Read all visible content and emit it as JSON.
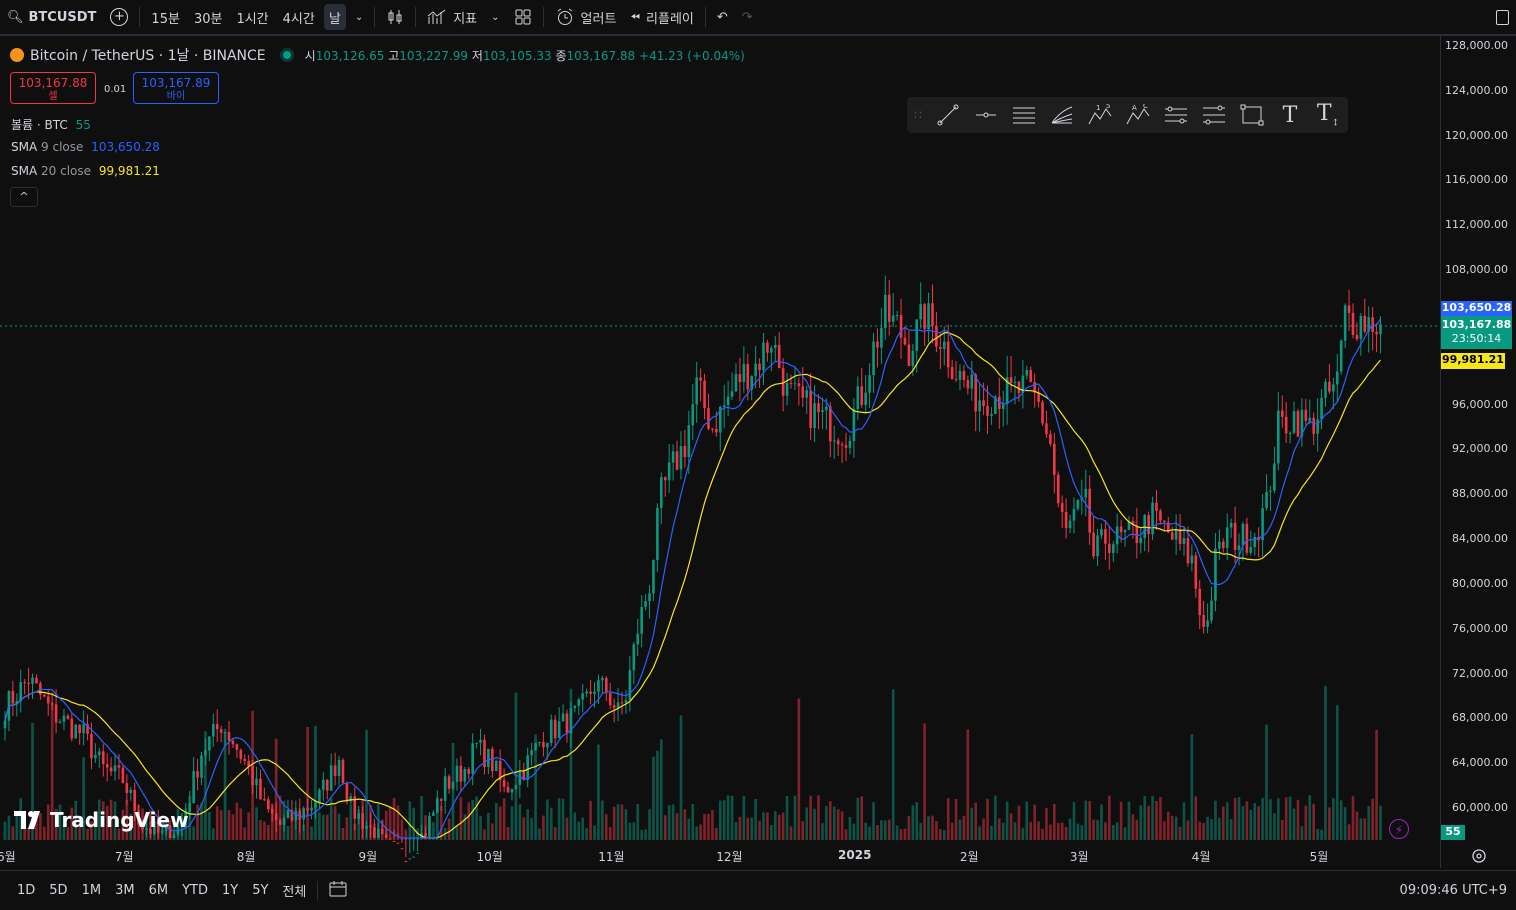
{
  "toolbar": {
    "symbol": "BTCUSDT",
    "intervals": [
      "15분",
      "30분",
      "1시간",
      "4시간",
      "날"
    ],
    "indicators_label": "지표",
    "alert_label": "얼러트",
    "replay_label": "리플레이"
  },
  "legend": {
    "title": "Bitcoin / TetherUS · 1날 · BINANCE",
    "open_label": "시",
    "open": "103,126.65",
    "high_label": "고",
    "high": "103,227.99",
    "low_label": "저",
    "low": "103,105.33",
    "close_label": "종",
    "close": "103,167.88",
    "change": "+41.23 (+0.04%)",
    "sell_price": "103,167.88",
    "sell_label": "셀",
    "spread": "0.01",
    "buy_price": "103,167.89",
    "buy_label": "바이",
    "volume_label": "볼륨 · BTC",
    "volume_value": "55",
    "sma9_name": "SMA",
    "sma9_params": "9 close",
    "sma9_value": "103,650.28",
    "sma20_name": "SMA",
    "sma20_params": "20 close",
    "sma20_value": "99,981.21",
    "collapse": "^"
  },
  "price_tags": {
    "sma9": "103,650.28",
    "last": "103,167.88",
    "countdown": "23:50:14",
    "sma20": "99,981.21",
    "volume": "55"
  },
  "bottom": {
    "ranges": [
      "1D",
      "5D",
      "1M",
      "3M",
      "6M",
      "YTD",
      "1Y",
      "5Y",
      "전체"
    ],
    "clock": "09:09:46 UTC+9"
  },
  "watermark": "TradingView",
  "colors": {
    "up": "#089981",
    "down": "#f23645",
    "sma9": "#2962ff",
    "sma20": "#f7e51e",
    "background": "#0f0f0f"
  },
  "chart_data": {
    "type": "candlestick",
    "title": "Bitcoin / TetherUS · 1날 · BINANCE",
    "y_ticks": [
      128000,
      124000,
      120000,
      116000,
      112000,
      108000,
      96000,
      92000,
      88000,
      84000,
      80000,
      76000,
      72000,
      68000,
      64000,
      60000
    ],
    "y_tick_labels": [
      "128,000.00",
      "124,000.00",
      "120,000.00",
      "116,000.00",
      "112,000.00",
      "108,000.00",
      "96,000.00",
      "92,000.00",
      "88,000.00",
      "84,000.00",
      "80,000.00",
      "76,000.00",
      "72,000.00",
      "68,000.00",
      "64,000.00",
      "60,000.00"
    ],
    "ylim": [
      56500,
      131000
    ],
    "x_tick_labels": [
      "6월",
      "7월",
      "8월",
      "9월",
      "10월",
      "11월",
      "12월",
      "2025",
      "2월",
      "3월",
      "4월",
      "5월"
    ],
    "x_tick_day_index": [
      0,
      30,
      61,
      92,
      122,
      153,
      183,
      214,
      245,
      273,
      304,
      334
    ],
    "close_path": [
      [
        0,
        69000
      ],
      [
        6,
        71500
      ],
      [
        12,
        68500
      ],
      [
        20,
        66500
      ],
      [
        25,
        63500
      ],
      [
        30,
        62500
      ],
      [
        35,
        58500
      ],
      [
        40,
        57500
      ],
      [
        45,
        58500
      ],
      [
        50,
        65000
      ],
      [
        55,
        67500
      ],
      [
        58,
        66000
      ],
      [
        62,
        63500
      ],
      [
        66,
        60000
      ],
      [
        70,
        58500
      ],
      [
        75,
        59500
      ],
      [
        80,
        61000
      ],
      [
        85,
        64500
      ],
      [
        88,
        60000
      ],
      [
        92,
        58500
      ],
      [
        97,
        56500
      ],
      [
        102,
        55500
      ],
      [
        107,
        58000
      ],
      [
        112,
        62000
      ],
      [
        117,
        63500
      ],
      [
        120,
        65500
      ],
      [
        124,
        64000
      ],
      [
        127,
        61500
      ],
      [
        132,
        63500
      ],
      [
        137,
        66500
      ],
      [
        142,
        67500
      ],
      [
        146,
        68500
      ],
      [
        150,
        71000
      ],
      [
        153,
        70500
      ],
      [
        156,
        68500
      ],
      [
        158,
        70000
      ],
      [
        161,
        76000
      ],
      [
        164,
        80000
      ],
      [
        167,
        88000
      ],
      [
        170,
        90500
      ],
      [
        173,
        92500
      ],
      [
        176,
        97500
      ],
      [
        180,
        94000
      ],
      [
        184,
        96500
      ],
      [
        187,
        98500
      ],
      [
        191,
        99500
      ],
      [
        195,
        102000
      ],
      [
        199,
        97000
      ],
      [
        203,
        96000
      ],
      [
        207,
        95000
      ],
      [
        211,
        94000
      ],
      [
        214,
        93500
      ],
      [
        218,
        97000
      ],
      [
        221,
        101000
      ],
      [
        224,
        104000
      ],
      [
        227,
        103000
      ],
      [
        230,
        101000
      ],
      [
        234,
        104000
      ],
      [
        238,
        102000
      ],
      [
        242,
        99000
      ],
      [
        246,
        97000
      ],
      [
        249,
        96500
      ],
      [
        252,
        97000
      ],
      [
        256,
        97000
      ],
      [
        260,
        97500
      ],
      [
        263,
        96000
      ],
      [
        266,
        92500
      ],
      [
        268,
        87000
      ],
      [
        270,
        84500
      ],
      [
        272,
        86000
      ],
      [
        275,
        87000
      ],
      [
        277,
        82500
      ],
      [
        280,
        84000
      ],
      [
        284,
        84000
      ],
      [
        288,
        84500
      ],
      [
        292,
        86000
      ],
      [
        296,
        84500
      ],
      [
        300,
        83000
      ],
      [
        302,
        82000
      ],
      [
        304,
        77500
      ],
      [
        306,
        76500
      ],
      [
        308,
        82000
      ],
      [
        311,
        84500
      ],
      [
        314,
        84000
      ],
      [
        318,
        84500
      ],
      [
        321,
        87000
      ],
      [
        324,
        94000
      ],
      [
        328,
        95000
      ],
      [
        332,
        94000
      ],
      [
        336,
        96500
      ],
      [
        339,
        98000
      ],
      [
        341,
        104000
      ],
      [
        344,
        103500
      ],
      [
        347,
        103500
      ],
      [
        350,
        103168
      ]
    ],
    "sma9_last": 103650.28,
    "sma20_last": 99981.21,
    "last_close": 103167.88
  }
}
